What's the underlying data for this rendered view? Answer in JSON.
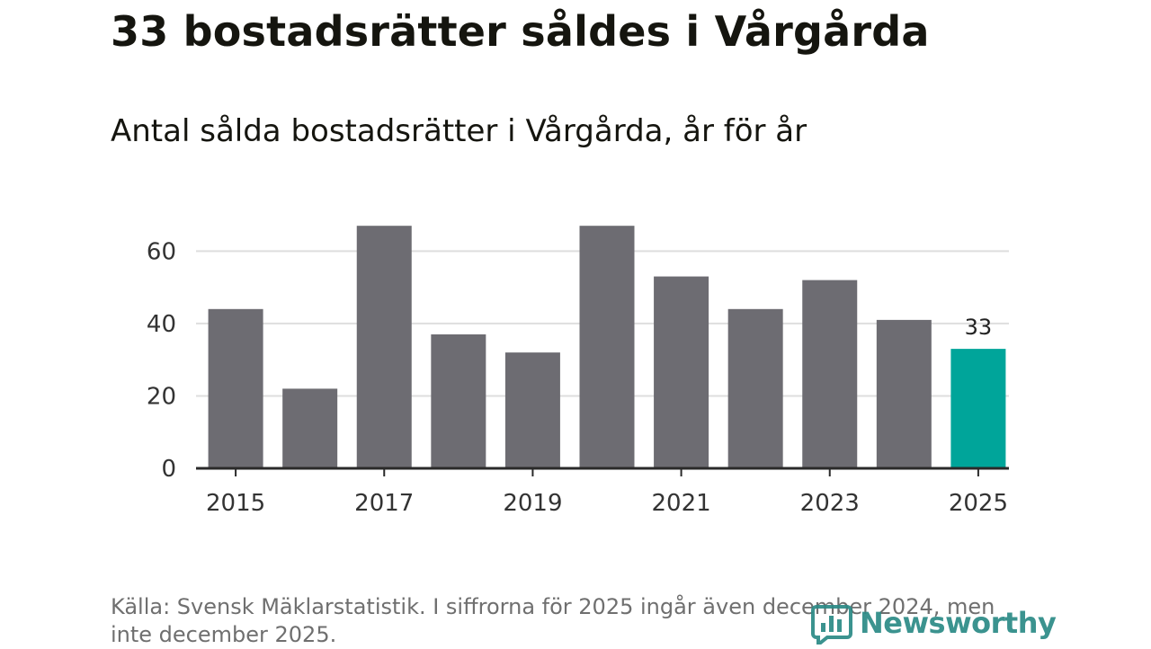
{
  "headline": "33 bostadsrätter såldes i Vårgårda",
  "chart_data": {
    "type": "bar",
    "title": "Antal sålda bostadsrätter i Vårgårda, år för år",
    "xlabel": "",
    "ylabel": "",
    "categories": [
      "2015",
      "2016",
      "2017",
      "2018",
      "2019",
      "2020",
      "2021",
      "2022",
      "2023",
      "2024",
      "2025"
    ],
    "values": [
      44,
      22,
      67,
      37,
      32,
      67,
      53,
      44,
      52,
      41,
      33
    ],
    "x_tick_labels": [
      "2015",
      "2017",
      "2019",
      "2021",
      "2023",
      "2025"
    ],
    "y_ticks": [
      0,
      20,
      40,
      60
    ],
    "ylim": [
      0,
      70
    ],
    "grid": true,
    "highlight": {
      "category": "2025",
      "label": "33"
    },
    "colors": {
      "default": "#6d6c72",
      "highlight": "#00a59a",
      "grid": "#dedede",
      "axis": "#2a2a2a"
    }
  },
  "source": "Källa: Svensk Mäklarstatistik. I siffrorna för 2025 ingår även december 2024, men inte december 2025.",
  "logo": {
    "text": "Newsworthy",
    "icon": "bar-chart-icon"
  }
}
